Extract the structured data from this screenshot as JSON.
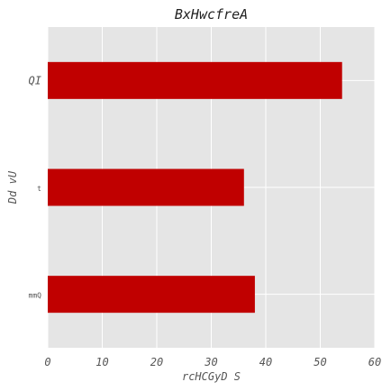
{
  "chart_data": {
    "type": "bar",
    "orientation": "horizontal",
    "title": "BxHwcfreA",
    "xlabel": "rcHCGyD S",
    "ylabel": "Dd  vU",
    "categories": [
      "QI",
      "t",
      "mmQ"
    ],
    "values": [
      54,
      36,
      38
    ],
    "xlim": [
      0,
      60
    ],
    "xticks": [
      0,
      10,
      20,
      30,
      40,
      50,
      60
    ],
    "grid": true,
    "bar_color": "#c00000",
    "background_color": "#e5e5e5",
    "grid_color": "#ffffff"
  }
}
